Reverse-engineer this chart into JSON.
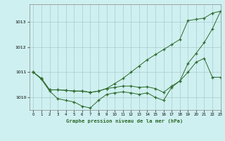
{
  "title": "Graphe pression niveau de la mer (hPa)",
  "background_color": "#cff0f0",
  "line_color": "#2d6a2d",
  "xlim": [
    -0.5,
    23
  ],
  "ylim": [
    1009.5,
    1013.7
  ],
  "yticks": [
    1010,
    1011,
    1012,
    1013
  ],
  "xticks": [
    0,
    1,
    2,
    3,
    4,
    5,
    6,
    7,
    8,
    9,
    10,
    11,
    12,
    13,
    14,
    15,
    16,
    17,
    18,
    19,
    20,
    21,
    22,
    23
  ],
  "line1": [
    1011.0,
    1010.75,
    1010.3,
    1010.3,
    1010.28,
    1010.25,
    1010.25,
    1010.2,
    1010.25,
    1010.35,
    1010.55,
    1010.75,
    1011.0,
    1011.25,
    1011.5,
    1011.7,
    1011.9,
    1012.1,
    1012.3,
    1013.05,
    1013.1,
    1013.15,
    1013.35,
    1013.42
  ],
  "line2": [
    1011.0,
    1010.75,
    1010.3,
    1010.3,
    1010.28,
    1010.25,
    1010.25,
    1010.2,
    1010.25,
    1010.35,
    1010.4,
    1010.45,
    1010.45,
    1010.4,
    1010.42,
    1010.35,
    1010.2,
    1010.45,
    1010.65,
    1011.0,
    1011.4,
    1011.55,
    1010.8,
    1010.8
  ],
  "line3": [
    1011.0,
    1010.72,
    1010.25,
    1009.95,
    1009.88,
    1009.82,
    1009.65,
    1009.58,
    1009.88,
    1010.12,
    1010.18,
    1010.22,
    1010.18,
    1010.12,
    1010.18,
    1010.0,
    1009.88,
    1010.4,
    1010.65,
    1011.35,
    1011.75,
    1012.18,
    1012.72,
    1013.42
  ]
}
